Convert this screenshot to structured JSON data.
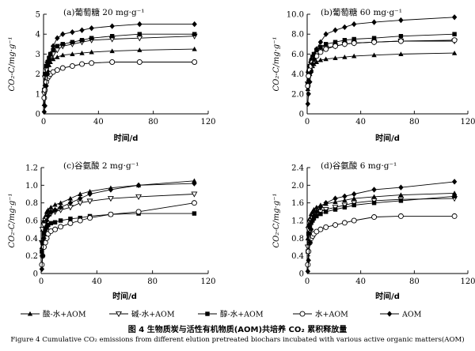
{
  "figure": {
    "caption": "图 4  生物质炭与活性有机物质(AOM)共培养 CO₂ 累积释放量",
    "caption_en": "Figure 4  Cumulative CO₂ emissions from different elution pretreated biochars incubated with various active organic matters(AOM)"
  },
  "legend": {
    "placement": "bottom",
    "items": [
      {
        "label": "酸-水+AOM",
        "marker": "triangle"
      },
      {
        "label": "碱-水+AOM",
        "marker": "triangle-down-open"
      },
      {
        "label": "醇-水+AOM",
        "marker": "square"
      },
      {
        "label": "水+AOM",
        "marker": "circle-open"
      },
      {
        "label": "AOM",
        "marker": "diamond"
      }
    ]
  },
  "chart_data": [
    {
      "type": "line",
      "title": "(a)葡萄糖 20 mg·g⁻¹",
      "xlabel": "时间/d",
      "ylabel": "CO₂-C/mg·g⁻¹",
      "xlim": [
        0,
        120
      ],
      "ylim": [
        0,
        5
      ],
      "xticks": [
        "0",
        "40",
        "80",
        "120"
      ],
      "yticks": [
        "0",
        "1",
        "2",
        "3",
        "4",
        "5"
      ],
      "series": [
        {
          "name": "酸-水+AOM",
          "x": [
            0.5,
            1,
            2,
            3,
            4,
            5,
            7,
            10,
            14,
            21,
            28,
            35,
            50,
            70,
            110
          ],
          "y": [
            0.5,
            1.5,
            1.9,
            2.2,
            2.45,
            2.6,
            2.75,
            2.85,
            2.95,
            3.0,
            3.05,
            3.1,
            3.15,
            3.2,
            3.25
          ]
        },
        {
          "name": "碱-水+AOM",
          "x": [
            0.5,
            1,
            2,
            3,
            4,
            5,
            7,
            10,
            14,
            21,
            28,
            35,
            50,
            70,
            110
          ],
          "y": [
            1.0,
            1.8,
            2.2,
            2.5,
            2.6,
            2.8,
            3.0,
            3.2,
            3.4,
            3.5,
            3.6,
            3.7,
            3.75,
            3.8,
            3.9
          ]
        },
        {
          "name": "醇-水+AOM",
          "x": [
            0.5,
            1,
            2,
            3,
            4,
            5,
            7,
            10,
            14,
            21,
            28,
            35,
            50,
            70,
            110
          ],
          "y": [
            1.2,
            2.0,
            2.4,
            2.6,
            2.8,
            3.0,
            3.2,
            3.4,
            3.5,
            3.6,
            3.7,
            3.8,
            3.9,
            4.0,
            4.0
          ]
        },
        {
          "name": "水+AOM",
          "x": [
            0.5,
            1,
            2,
            3,
            4,
            5,
            7,
            10,
            14,
            21,
            28,
            35,
            50,
            70,
            110
          ],
          "y": [
            0.8,
            1.2,
            1.6,
            1.8,
            1.9,
            2.0,
            2.1,
            2.2,
            2.3,
            2.4,
            2.5,
            2.55,
            2.6,
            2.6,
            2.6
          ]
        },
        {
          "name": "AOM",
          "x": [
            0.5,
            1,
            2,
            3,
            4,
            5,
            7,
            10,
            14,
            21,
            28,
            35,
            50,
            70,
            110
          ],
          "y": [
            0.1,
            0.4,
            1.4,
            2.0,
            2.6,
            3.0,
            3.4,
            3.8,
            4.0,
            4.1,
            4.2,
            4.3,
            4.4,
            4.5,
            4.5
          ]
        }
      ]
    },
    {
      "type": "line",
      "title": "(b)葡萄糖 60 mg·g⁻¹",
      "xlabel": "时间/d",
      "ylabel": "CO₂-C/mg·g⁻¹",
      "xlim": [
        0,
        120
      ],
      "ylim": [
        0,
        10
      ],
      "xticks": [
        "0",
        "40",
        "80",
        "120"
      ],
      "yticks": [
        "0",
        "2.0",
        "4.0",
        "6.0",
        "8.0",
        "10.0"
      ],
      "series": [
        {
          "name": "酸-水+AOM",
          "x": [
            0.5,
            1,
            2,
            3,
            4,
            5,
            7,
            10,
            14,
            21,
            28,
            35,
            50,
            70,
            110
          ],
          "y": [
            2.5,
            3.5,
            4.0,
            4.5,
            4.8,
            5.0,
            5.2,
            5.4,
            5.5,
            5.6,
            5.7,
            5.8,
            5.9,
            6.0,
            6.1
          ]
        },
        {
          "name": "碱-水+AOM",
          "x": [
            0.5,
            1,
            2,
            3,
            4,
            5,
            7,
            10,
            14,
            21,
            28,
            35,
            50,
            70,
            110
          ],
          "y": [
            3.0,
            4.0,
            4.6,
            5.0,
            5.4,
            5.7,
            6.0,
            6.3,
            6.6,
            6.8,
            7.0,
            7.1,
            7.2,
            7.3,
            7.3
          ]
        },
        {
          "name": "醇-水+AOM",
          "x": [
            0.5,
            1,
            2,
            3,
            4,
            5,
            7,
            10,
            14,
            21,
            28,
            35,
            50,
            70,
            110
          ],
          "y": [
            3.0,
            4.2,
            4.8,
            5.3,
            5.7,
            6.0,
            6.4,
            6.7,
            7.0,
            7.2,
            7.4,
            7.5,
            7.6,
            7.8,
            8.0
          ]
        },
        {
          "name": "水+AOM",
          "x": [
            0.5,
            1,
            2,
            3,
            4,
            5,
            7,
            10,
            14,
            21,
            28,
            35,
            50,
            70,
            110
          ],
          "y": [
            2.8,
            3.8,
            4.4,
            4.8,
            5.2,
            5.5,
            5.8,
            6.2,
            6.5,
            6.8,
            7.0,
            7.1,
            7.2,
            7.3,
            7.4
          ]
        },
        {
          "name": "AOM",
          "x": [
            0.5,
            1,
            2,
            3,
            4,
            5,
            7,
            10,
            14,
            21,
            28,
            35,
            50,
            70,
            110
          ],
          "y": [
            1.0,
            2.0,
            3.2,
            4.2,
            5.0,
            5.5,
            6.5,
            7.2,
            8.0,
            8.4,
            8.7,
            9.0,
            9.2,
            9.4,
            9.7
          ]
        }
      ]
    },
    {
      "type": "line",
      "title": "(c)谷氨酸 2 mg·g⁻¹",
      "xlabel": "时间/d",
      "ylabel": "CO₂-C/mg·g⁻¹",
      "xlim": [
        0,
        120
      ],
      "ylim": [
        0,
        1.2
      ],
      "xticks": [
        "0",
        "40",
        "80",
        "120"
      ],
      "yticks": [
        "0",
        "0.2",
        "0.4",
        "0.6",
        "0.8",
        "1.0",
        "1.2"
      ],
      "series": [
        {
          "name": "酸-水+AOM",
          "x": [
            0.5,
            1,
            2,
            3,
            4,
            5,
            7,
            10,
            14,
            21,
            28,
            35,
            50,
            70,
            110
          ],
          "y": [
            0.3,
            0.5,
            0.6,
            0.65,
            0.7,
            0.72,
            0.75,
            0.78,
            0.8,
            0.85,
            0.9,
            0.93,
            0.97,
            1.0,
            1.05
          ]
        },
        {
          "name": "碱-水+AOM",
          "x": [
            0.5,
            1,
            2,
            3,
            4,
            5,
            7,
            10,
            14,
            21,
            28,
            35,
            50,
            70,
            110
          ],
          "y": [
            0.35,
            0.5,
            0.55,
            0.6,
            0.62,
            0.65,
            0.68,
            0.7,
            0.72,
            0.75,
            0.8,
            0.82,
            0.85,
            0.87,
            0.9
          ]
        },
        {
          "name": "醇-水+AOM",
          "x": [
            0.5,
            1,
            2,
            3,
            4,
            5,
            7,
            10,
            14,
            21,
            28,
            35,
            50,
            70,
            110
          ],
          "y": [
            0.25,
            0.35,
            0.45,
            0.5,
            0.52,
            0.55,
            0.57,
            0.58,
            0.6,
            0.62,
            0.63,
            0.65,
            0.67,
            0.68,
            0.68
          ]
        },
        {
          "name": "水+AOM",
          "x": [
            0.5,
            1,
            2,
            3,
            4,
            5,
            7,
            10,
            14,
            21,
            28,
            35,
            50,
            70,
            110
          ],
          "y": [
            0.1,
            0.2,
            0.3,
            0.35,
            0.4,
            0.45,
            0.48,
            0.5,
            0.53,
            0.57,
            0.6,
            0.63,
            0.67,
            0.7,
            0.8
          ]
        },
        {
          "name": "AOM",
          "x": [
            0.5,
            1,
            2,
            3,
            4,
            5,
            7,
            10,
            14,
            21,
            28,
            35,
            50,
            70,
            110
          ],
          "y": [
            0.05,
            0.2,
            0.4,
            0.5,
            0.6,
            0.65,
            0.7,
            0.72,
            0.75,
            0.8,
            0.85,
            0.9,
            0.95,
            1.0,
            1.02
          ]
        }
      ]
    },
    {
      "type": "line",
      "title": "(d)谷氨酸 6 mg·g⁻¹",
      "xlabel": "时间/d",
      "ylabel": "CO₂-C/mg·g⁻¹",
      "xlim": [
        0,
        120
      ],
      "ylim": [
        0,
        2.4
      ],
      "xticks": [
        "0",
        "40",
        "80",
        "120"
      ],
      "yticks": [
        "0",
        "0.4",
        "0.8",
        "1.2",
        "1.6",
        "2.0",
        "2.4"
      ],
      "series": [
        {
          "name": "酸-水+AOM",
          "x": [
            0.5,
            1,
            2,
            3,
            4,
            5,
            7,
            10,
            14,
            21,
            28,
            35,
            50,
            70,
            110
          ],
          "y": [
            0.8,
            1.1,
            1.25,
            1.35,
            1.4,
            1.45,
            1.5,
            1.55,
            1.58,
            1.62,
            1.66,
            1.7,
            1.74,
            1.78,
            1.82
          ]
        },
        {
          "name": "碱-水+AOM",
          "x": [
            0.5,
            1,
            2,
            3,
            4,
            5,
            7,
            10,
            14,
            21,
            28,
            35,
            50,
            70,
            110
          ],
          "y": [
            0.6,
            1.0,
            1.15,
            1.2,
            1.25,
            1.3,
            1.35,
            1.4,
            1.45,
            1.5,
            1.55,
            1.6,
            1.65,
            1.68,
            1.7
          ]
        },
        {
          "name": "醇-水+AOM",
          "x": [
            0.5,
            1,
            2,
            3,
            4,
            5,
            7,
            10,
            14,
            21,
            28,
            35,
            50,
            70,
            110
          ],
          "y": [
            0.5,
            0.9,
            1.05,
            1.15,
            1.2,
            1.25,
            1.3,
            1.35,
            1.4,
            1.45,
            1.5,
            1.55,
            1.6,
            1.65,
            1.75
          ]
        },
        {
          "name": "水+AOM",
          "x": [
            0.5,
            1,
            2,
            3,
            4,
            5,
            7,
            10,
            14,
            21,
            28,
            35,
            50,
            70,
            110
          ],
          "y": [
            0.2,
            0.5,
            0.7,
            0.8,
            0.85,
            0.9,
            0.95,
            1.0,
            1.05,
            1.1,
            1.15,
            1.2,
            1.28,
            1.3,
            1.3
          ]
        },
        {
          "name": "AOM",
          "x": [
            0.5,
            1,
            2,
            3,
            4,
            5,
            7,
            10,
            14,
            21,
            28,
            35,
            50,
            70,
            110
          ],
          "y": [
            0.05,
            0.3,
            0.7,
            1.0,
            1.2,
            1.3,
            1.4,
            1.5,
            1.6,
            1.7,
            1.75,
            1.8,
            1.9,
            1.95,
            2.08
          ]
        }
      ]
    }
  ]
}
